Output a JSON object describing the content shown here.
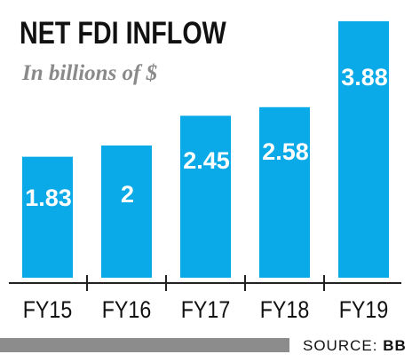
{
  "chart_data": {
    "type": "bar",
    "title": "NET FDI INFLOW",
    "subtitle": "In billions of $",
    "categories": [
      "FY15",
      "FY16",
      "FY17",
      "FY18",
      "FY19"
    ],
    "values": [
      1.83,
      2,
      2.45,
      2.58,
      3.88
    ],
    "value_labels": [
      "1.83",
      "2",
      "2.45",
      "2.58",
      "3.88"
    ],
    "ylim": [
      0,
      4
    ],
    "grid": false,
    "bar_color": "#0aaae8",
    "label_color": "#ffffff"
  },
  "footer": {
    "source_prefix": "SOURCE: ",
    "source_name": "BB"
  }
}
